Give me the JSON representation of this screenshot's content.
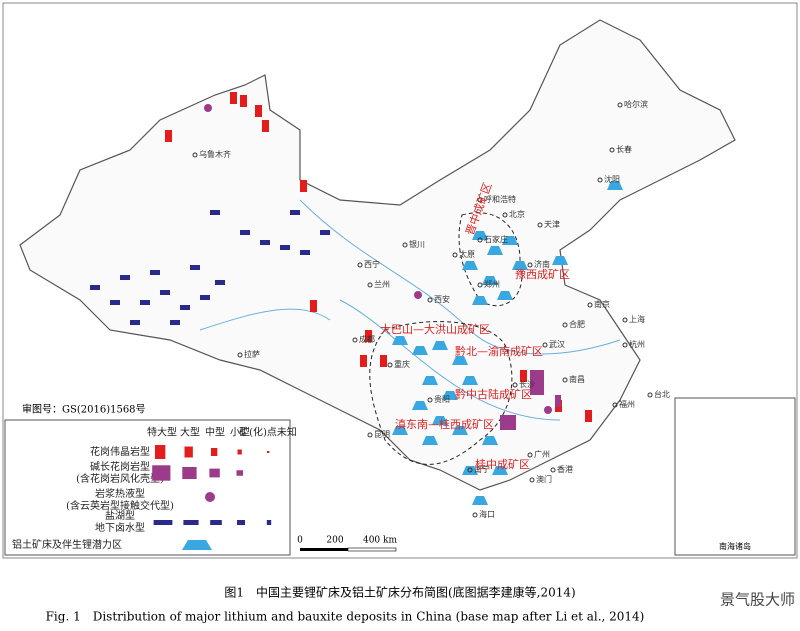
{
  "approval_number": "审图号：GS(2016)1568号",
  "legend": {
    "headers": [
      "特大型",
      "大型",
      "中型",
      "小型",
      "矿(化)点未知"
    ],
    "rows": [
      "花岗伟晶岩型",
      "碱长花岗岩型\n(含花岗岩风化壳型)",
      "岩浆热液型\n(含云英岩型接触交代型)",
      "盐湖型\n地下卤水型",
      "铝土矿床及伴生锂潜力区"
    ]
  },
  "scale_bar": [
    "0",
    "200",
    "400 km"
  ],
  "regions": [
    "晋中成矿区",
    "豫西成矿区",
    "大巴山—大洪山成矿区",
    "黔北—渝南成矿区",
    "黔中古陆成矿区",
    "滇东南—桂西成矿区",
    "桂中成矿区"
  ],
  "cities": [
    "乌鲁木齐",
    "呼和浩特",
    "北京",
    "天津",
    "石家庄",
    "太原",
    "西宁",
    "兰州",
    "银川",
    "西安",
    "郑州",
    "济南",
    "南京",
    "上海",
    "合肥",
    "武汉",
    "杭州",
    "长沙",
    "南昌",
    "福州",
    "台北",
    "广州",
    "南宁",
    "贵阳",
    "昆明",
    "成都",
    "重庆",
    "拉萨",
    "哈尔滨",
    "长春",
    "沈阳",
    "海口",
    "香港",
    "澳门"
  ],
  "inset_title": "南海诸岛",
  "caption": {
    "chinese": "图1　中国主要锂矿床及铝土矿床分布简图(底图据李建康等,2014)",
    "english": "Fig. 1　Distribution of major lithium and bauxite deposits in China (base map after Li et al., 2014)"
  },
  "watermark": "景气股大师"
}
